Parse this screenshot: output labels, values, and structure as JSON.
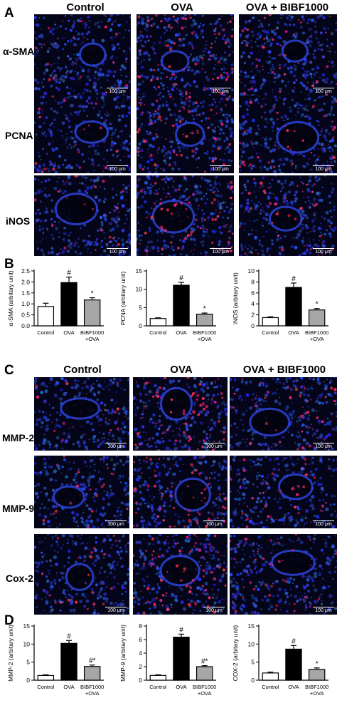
{
  "panels": {
    "a": "A",
    "b": "B",
    "c": "C",
    "d": "D"
  },
  "group_labels": [
    "Control",
    "OVA",
    "OVA + BIBF1000"
  ],
  "rows_a": [
    "α-SMA",
    "PCNA",
    "iNOS"
  ],
  "rows_c": [
    "MMP-2",
    "MMP-9",
    "Cox-2"
  ],
  "scale_label": "100 μm",
  "chart_data": [
    {
      "type": "bar",
      "categories": [
        "Control",
        "OVA",
        "BIBF1000\n+OVA"
      ],
      "values": [
        0.88,
        1.97,
        1.18
      ],
      "errors": [
        0.15,
        0.25,
        0.1
      ],
      "ylabel": "α-SMA (arbitary unit)",
      "ylim": [
        0,
        2.5
      ],
      "yticks": [
        0.0,
        0.5,
        1.0,
        1.5,
        2.0,
        2.5
      ],
      "ytick_labels": [
        "0.0",
        "0.5",
        "1.0",
        "1.5",
        "2.0",
        "2.5"
      ],
      "significance": [
        "",
        "#",
        "*"
      ],
      "colors": [
        "#ffffff",
        "#000000",
        "#a6a6a6"
      ]
    },
    {
      "type": "bar",
      "categories": [
        "Control",
        "OVA",
        "BIBF1000\n+OVA"
      ],
      "values": [
        2.0,
        11.1,
        3.2
      ],
      "errors": [
        0.2,
        0.8,
        0.3
      ],
      "ylabel": "PCNA (arbitary unit)",
      "ylim": [
        0,
        15
      ],
      "yticks": [
        0,
        5,
        10,
        15
      ],
      "ytick_labels": [
        "0",
        "5",
        "10",
        "15"
      ],
      "significance": [
        "",
        "#",
        "*"
      ],
      "colors": [
        "#ffffff",
        "#000000",
        "#a6a6a6"
      ]
    },
    {
      "type": "bar",
      "categories": [
        "Control",
        "OVA",
        "BIBF1000\n+OVA"
      ],
      "values": [
        1.5,
        7.0,
        2.9
      ],
      "errors": [
        0.15,
        0.8,
        0.25
      ],
      "ylabel": "iNOS (arbitary unit)",
      "ylim": [
        0,
        10
      ],
      "yticks": [
        0,
        2,
        4,
        6,
        8,
        10
      ],
      "ytick_labels": [
        "0",
        "2",
        "4",
        "6",
        "8",
        "10"
      ],
      "significance": [
        "",
        "#",
        "*"
      ],
      "colors": [
        "#ffffff",
        "#000000",
        "#a6a6a6"
      ]
    },
    {
      "type": "bar",
      "categories": [
        "Control",
        "OVA",
        "BIBF1000\n+OVA"
      ],
      "values": [
        1.3,
        10.2,
        3.8
      ],
      "errors": [
        0.2,
        0.8,
        0.4
      ],
      "ylabel": "MMP-2 (arbitary unit)",
      "ylim": [
        0,
        15
      ],
      "yticks": [
        0,
        5,
        10,
        15
      ],
      "ytick_labels": [
        "0",
        "5",
        "10",
        "15"
      ],
      "significance": [
        "",
        "#",
        "#*"
      ],
      "colors": [
        "#ffffff",
        "#000000",
        "#a6a6a6"
      ]
    },
    {
      "type": "bar",
      "categories": [
        "Control",
        "OVA",
        "BIBF1000\n+OVA"
      ],
      "values": [
        0.7,
        6.35,
        2.0
      ],
      "errors": [
        0.1,
        0.45,
        0.15
      ],
      "ylabel": "MMP-9 (arbitary unit)",
      "ylim": [
        0,
        8
      ],
      "yticks": [
        0,
        2,
        4,
        6,
        8
      ],
      "ytick_labels": [
        "0",
        "2",
        "4",
        "6",
        "8"
      ],
      "significance": [
        "",
        "#",
        "#*"
      ],
      "colors": [
        "#ffffff",
        "#000000",
        "#a6a6a6"
      ]
    },
    {
      "type": "bar",
      "categories": [
        "Control",
        "OVA",
        "BIBF1000\n+OVA"
      ],
      "values": [
        2.0,
        8.6,
        3.0
      ],
      "errors": [
        0.25,
        1.0,
        0.4
      ],
      "ylabel": "COX-2 (arbitary unit)",
      "ylim": [
        0,
        15
      ],
      "yticks": [
        0,
        5,
        10,
        15
      ],
      "ytick_labels": [
        "0",
        "5",
        "10",
        "15"
      ],
      "significance": [
        "",
        "#",
        "*"
      ],
      "colors": [
        "#ffffff",
        "#000000",
        "#a6a6a6"
      ]
    }
  ]
}
